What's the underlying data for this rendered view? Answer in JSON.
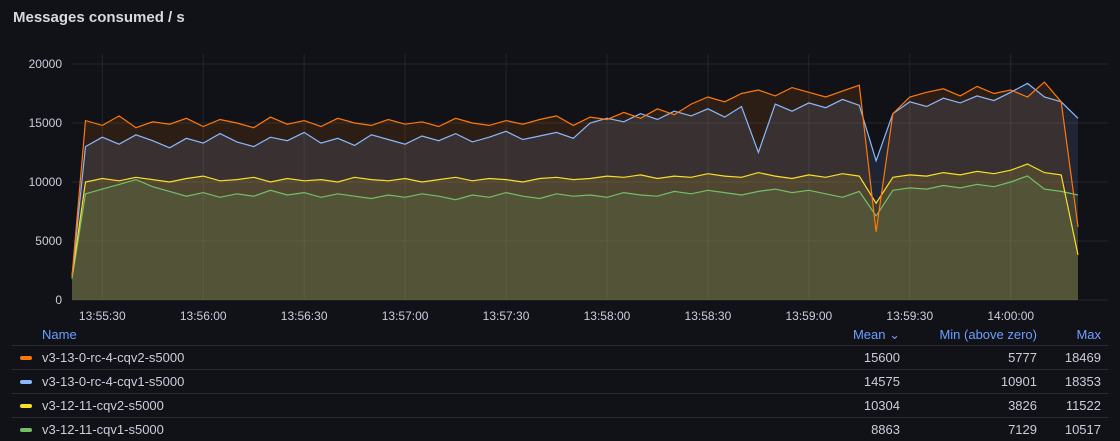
{
  "panel": {
    "title": "Messages consumed / s"
  },
  "chart_data": {
    "type": "area",
    "title": "Messages consumed / s",
    "ylim": [
      0,
      20000
    ],
    "yticks": [
      "0",
      "5000",
      "10000",
      "15000",
      "20000"
    ],
    "xrange": [
      "13:55:21",
      "14:00:20"
    ],
    "xticks": [
      "13:55:30",
      "13:56:00",
      "13:56:30",
      "13:57:00",
      "13:57:30",
      "13:58:00",
      "13:58:30",
      "13:59:00",
      "13:59:30",
      "14:00:00"
    ],
    "x_start": "13:55:20",
    "x_step_seconds": 5,
    "grid": true,
    "legend_placement": "bottom",
    "series": [
      {
        "name": "v3-13-0-rc-4-cqv2-s5000",
        "color": "#FF780A",
        "values": [
          2000,
          15200,
          14800,
          15600,
          14600,
          15100,
          14900,
          15400,
          14700,
          15300,
          15000,
          14600,
          15500,
          14900,
          15200,
          14700,
          15400,
          15000,
          14800,
          15300,
          14900,
          15100,
          14700,
          15400,
          15000,
          14800,
          15200,
          14900,
          15300,
          15600,
          14800,
          15500,
          15300,
          15900,
          15400,
          16200,
          15700,
          16600,
          17200,
          16800,
          17500,
          17800,
          17300,
          18000,
          17600,
          17200,
          17700,
          18200,
          5777,
          15800,
          17200,
          17600,
          17900,
          17300,
          18100,
          17500,
          17800,
          17200,
          18469,
          16800,
          6200
        ]
      },
      {
        "name": "v3-13-0-rc-4-cqv1-s5000",
        "color": "#8AB8FF",
        "values": [
          2000,
          13000,
          13800,
          13200,
          14000,
          13500,
          12900,
          13700,
          13300,
          14100,
          13400,
          13000,
          13800,
          13500,
          14200,
          13300,
          13700,
          13100,
          14000,
          13600,
          13200,
          13900,
          13500,
          14100,
          13400,
          13800,
          14300,
          13600,
          13900,
          14200,
          13700,
          15000,
          15400,
          15100,
          15800,
          15300,
          16000,
          15600,
          16200,
          15500,
          16400,
          12500,
          16600,
          16000,
          16700,
          16300,
          17000,
          16500,
          11800,
          15800,
          16800,
          16400,
          17100,
          16700,
          17300,
          16900,
          17600,
          18353,
          17200,
          16800,
          15400
        ]
      },
      {
        "name": "v3-12-11-cqv2-s5000",
        "color": "#FADE2A",
        "values": [
          2000,
          10000,
          10300,
          10100,
          10400,
          10200,
          10000,
          10300,
          10500,
          10100,
          10200,
          10400,
          10000,
          10300,
          10100,
          10200,
          10000,
          10400,
          10200,
          10100,
          10300,
          10000,
          10200,
          10400,
          10100,
          10300,
          10200,
          10000,
          10300,
          10400,
          10200,
          10300,
          10500,
          10400,
          10600,
          10300,
          10500,
          10400,
          10700,
          10500,
          10400,
          10800,
          10500,
          10300,
          10600,
          10400,
          10700,
          10500,
          8200,
          10400,
          10600,
          10500,
          10800,
          10600,
          10900,
          10700,
          11000,
          11522,
          10800,
          10600,
          3826
        ]
      },
      {
        "name": "v3-12-11-cqv1-s5000",
        "color": "#73BF69",
        "values": [
          1800,
          9000,
          9400,
          9800,
          10200,
          9600,
          9200,
          8800,
          9100,
          8700,
          9000,
          8800,
          9300,
          8900,
          9100,
          8700,
          9000,
          8800,
          8600,
          8900,
          8700,
          9000,
          8800,
          8500,
          8900,
          8700,
          9100,
          8800,
          8600,
          9000,
          8800,
          8900,
          8700,
          9100,
          8900,
          8800,
          9200,
          9000,
          9300,
          9100,
          8900,
          9200,
          9400,
          9100,
          9300,
          9000,
          8700,
          9200,
          7129,
          9300,
          9500,
          9400,
          9700,
          9500,
          9800,
          9600,
          10000,
          10517,
          9400,
          9200,
          8900
        ]
      }
    ]
  },
  "legend": {
    "headers": {
      "name": "Name",
      "mean": "Mean ⌄",
      "min": "Min (above zero)",
      "max": "Max"
    },
    "rows": [
      {
        "name": "v3-13-0-rc-4-cqv2-s5000",
        "color": "#FF780A",
        "mean": "15600",
        "min": "5777",
        "max": "18469"
      },
      {
        "name": "v3-13-0-rc-4-cqv1-s5000",
        "color": "#8AB8FF",
        "mean": "14575",
        "min": "10901",
        "max": "18353"
      },
      {
        "name": "v3-12-11-cqv2-s5000",
        "color": "#FADE2A",
        "mean": "10304",
        "min": "3826",
        "max": "11522"
      },
      {
        "name": "v3-12-11-cqv1-s5000",
        "color": "#73BF69",
        "mean": "8863",
        "min": "7129",
        "max": "10517"
      }
    ]
  }
}
